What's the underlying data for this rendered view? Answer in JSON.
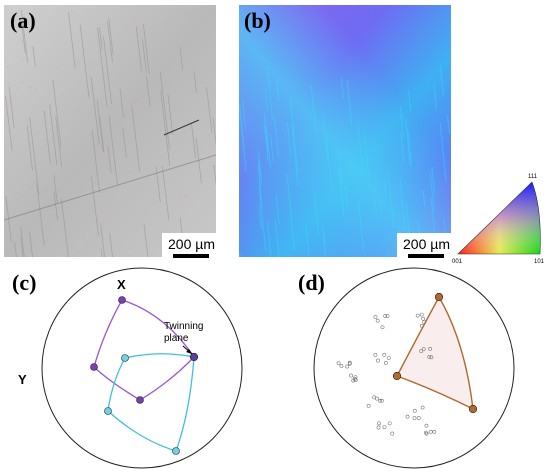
{
  "panels": {
    "a": {
      "label": "(a)",
      "scale_bar": "200 µm"
    },
    "b": {
      "label": "(b)",
      "scale_bar": "200 µm"
    },
    "c": {
      "label": "(c)",
      "axis_x": "X",
      "axis_y": "Y",
      "annotation_line1": "Twinning",
      "annotation_line2": "plane"
    },
    "d": {
      "label": "(d)"
    }
  },
  "ipf_key": {
    "corner_top": "111",
    "corner_left": "001",
    "corner_right": "101"
  },
  "colors": {
    "twin_purple": "#9b59d0",
    "twin_cyan": "#3fc1d9",
    "pole_brown": "#b06a2c",
    "ipf_blue": "#3b7bff",
    "ipf_magenta": "#8c5cf0"
  }
}
